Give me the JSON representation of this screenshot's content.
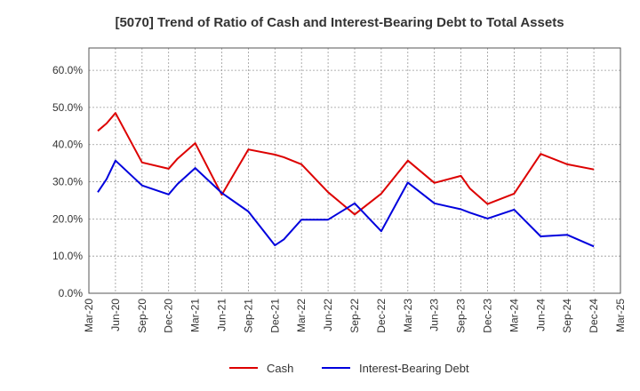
{
  "chart_data": {
    "type": "line",
    "title": "[5070]  Trend of Ratio of Cash and Interest-Bearing Debt to Total Assets",
    "xlabel": "",
    "ylabel": "",
    "ylim": [
      0,
      0.66
    ],
    "yticks": [
      {
        "value": 0.0,
        "label": "0.0%"
      },
      {
        "value": 0.1,
        "label": "10.0%"
      },
      {
        "value": 0.2,
        "label": "20.0%"
      },
      {
        "value": 0.3,
        "label": "30.0%"
      },
      {
        "value": 0.4,
        "label": "40.0%"
      },
      {
        "value": 0.5,
        "label": "50.0%"
      },
      {
        "value": 0.6,
        "label": "60.0%"
      }
    ],
    "xlim": [
      "2020-03",
      "2025-03"
    ],
    "xticks": [
      "Mar-20",
      "Jun-20",
      "Sep-20",
      "Dec-20",
      "Mar-21",
      "Jun-21",
      "Sep-21",
      "Dec-21",
      "Mar-22",
      "Jun-22",
      "Sep-22",
      "Dec-22",
      "Mar-23",
      "Jun-23",
      "Sep-23",
      "Dec-23",
      "Mar-24",
      "Jun-24",
      "Sep-24",
      "Dec-24",
      "Mar-25"
    ],
    "x": [
      "2020-04",
      "2020-05",
      "2020-06",
      "2020-09",
      "2020-12",
      "2021-01",
      "2021-03",
      "2021-06",
      "2021-09",
      "2021-12",
      "2022-01",
      "2022-03",
      "2022-06",
      "2022-09",
      "2022-12",
      "2023-03",
      "2023-06",
      "2023-09",
      "2023-10",
      "2023-12",
      "2024-03",
      "2024-06",
      "2024-09",
      "2024-12"
    ],
    "series": [
      {
        "name": "Cash",
        "color": "#dd0000",
        "values": [
          0.437,
          0.457,
          0.485,
          0.352,
          0.335,
          0.362,
          0.404,
          0.265,
          0.387,
          0.373,
          0.366,
          0.347,
          0.272,
          0.212,
          0.268,
          0.357,
          0.297,
          0.316,
          0.282,
          0.24,
          0.268,
          0.375,
          0.347,
          0.333
        ]
      },
      {
        "name": "Interest-Bearing Debt",
        "color": "#0000dd",
        "values": [
          0.272,
          0.307,
          0.357,
          0.29,
          0.266,
          0.294,
          0.337,
          0.27,
          0.22,
          0.129,
          0.145,
          0.198,
          0.198,
          0.242,
          0.167,
          0.298,
          0.242,
          0.226,
          0.217,
          0.201,
          0.225,
          0.153,
          0.157,
          0.126
        ]
      }
    ],
    "grid": true,
    "legend_position": "bottom-center"
  }
}
